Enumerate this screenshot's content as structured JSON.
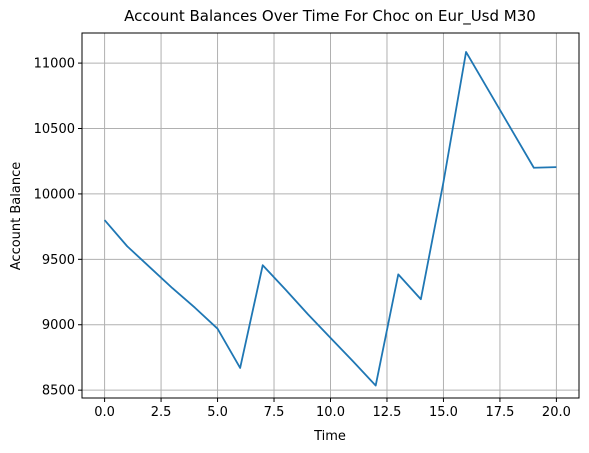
{
  "chart_data": {
    "type": "line",
    "title": "Account Balances Over Time For Choc on Eur_Usd M30",
    "xlabel": "Time",
    "ylabel": "Account Balance",
    "xlim": [
      -1,
      21
    ],
    "ylim": [
      8440,
      11230
    ],
    "xticks": [
      0.0,
      2.5,
      5.0,
      7.5,
      10.0,
      12.5,
      15.0,
      17.5,
      20.0
    ],
    "xtick_labels": [
      "0.0",
      "2.5",
      "5.0",
      "7.5",
      "10.0",
      "12.5",
      "15.0",
      "17.5",
      "20.0"
    ],
    "yticks": [
      8500,
      9000,
      9500,
      10000,
      10500,
      11000
    ],
    "ytick_labels": [
      "8500",
      "9000",
      "9500",
      "10000",
      "10500",
      "11000"
    ],
    "grid": true,
    "legend": "none",
    "line_color": "#1f77b4",
    "series": [
      {
        "x": [
          0,
          1,
          2,
          3,
          4,
          5,
          6,
          7,
          8,
          9,
          10,
          11,
          12,
          13,
          14,
          15,
          16,
          17,
          18,
          19,
          20
        ],
        "values": [
          9800,
          9600,
          9440,
          9280,
          9130,
          8970,
          8670,
          9455,
          9270,
          9080,
          8900,
          8720,
          8535,
          9385,
          9195,
          10090,
          11085,
          10790,
          10495,
          10200,
          10205
        ]
      }
    ]
  }
}
